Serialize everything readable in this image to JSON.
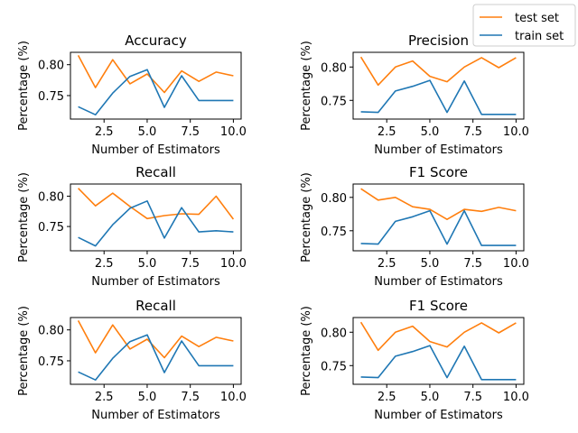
{
  "colors": {
    "test": "#ff7f0e",
    "train": "#1f77b4"
  },
  "legend": {
    "placement": "upper right",
    "entries": [
      {
        "key": "test",
        "label": "test set"
      },
      {
        "key": "train",
        "label": "train set"
      }
    ]
  },
  "chart_data": [
    {
      "type": "line",
      "title": "Accuracy",
      "xlabel": "Number of Estimators",
      "ylabel": "Percentage (%)",
      "xlim": [
        0.55,
        10.45
      ],
      "ylim": [
        0.712,
        0.82
      ],
      "xticks": [
        2.5,
        5.0,
        7.5,
        10.0
      ],
      "xtick_labels": [
        "2.5",
        "5.0",
        "7.5",
        "10.0"
      ],
      "yticks": [
        0.75,
        0.8
      ],
      "ytick_labels": [
        "0.75",
        "0.80"
      ],
      "x": [
        1,
        2,
        3,
        4,
        5,
        6,
        7,
        8,
        9,
        10
      ],
      "series": [
        {
          "key": "test",
          "name": "test set",
          "values": [
            0.815,
            0.763,
            0.808,
            0.769,
            0.785,
            0.755,
            0.79,
            0.773,
            0.788,
            0.782
          ]
        },
        {
          "key": "train",
          "name": "train set",
          "values": [
            0.732,
            0.719,
            0.754,
            0.781,
            0.792,
            0.731,
            0.782,
            0.742,
            0.742,
            0.742
          ]
        }
      ]
    },
    {
      "type": "line",
      "title": "Precision",
      "xlabel": "Number of Estimators",
      "ylabel": "Percentage (%)",
      "xlim": [
        0.55,
        10.45
      ],
      "ylim": [
        0.722,
        0.822
      ],
      "xticks": [
        2.5,
        5.0,
        7.5,
        10.0
      ],
      "xtick_labels": [
        "2.5",
        "5.0",
        "7.5",
        "10.0"
      ],
      "yticks": [
        0.75,
        0.8
      ],
      "ytick_labels": [
        "0.75",
        "0.80"
      ],
      "x": [
        1,
        2,
        3,
        4,
        5,
        6,
        7,
        8,
        9,
        10
      ],
      "series": [
        {
          "key": "test",
          "name": "test set",
          "values": [
            0.815,
            0.773,
            0.8,
            0.809,
            0.786,
            0.778,
            0.8,
            0.814,
            0.799,
            0.814
          ]
        },
        {
          "key": "train",
          "name": "train set",
          "values": [
            0.733,
            0.732,
            0.764,
            0.771,
            0.78,
            0.732,
            0.779,
            0.729,
            0.729,
            0.729
          ]
        }
      ]
    },
    {
      "type": "line",
      "title": "Recall",
      "xlabel": "Number of Estimators",
      "ylabel": "Percentage (%)",
      "xlim": [
        0.55,
        10.45
      ],
      "ylim": [
        0.71,
        0.82
      ],
      "xticks": [
        2.5,
        5.0,
        7.5,
        10.0
      ],
      "xtick_labels": [
        "2.5",
        "5.0",
        "7.5",
        "10.0"
      ],
      "yticks": [
        0.75,
        0.8
      ],
      "ytick_labels": [
        "0.75",
        "0.80"
      ],
      "x": [
        1,
        2,
        3,
        4,
        5,
        6,
        7,
        8,
        9,
        10
      ],
      "series": [
        {
          "key": "test",
          "name": "test set",
          "values": [
            0.813,
            0.784,
            0.805,
            0.783,
            0.763,
            0.768,
            0.771,
            0.77,
            0.8,
            0.762
          ]
        },
        {
          "key": "train",
          "name": "train set",
          "values": [
            0.732,
            0.718,
            0.753,
            0.78,
            0.792,
            0.731,
            0.781,
            0.741,
            0.743,
            0.741
          ]
        }
      ]
    },
    {
      "type": "line",
      "title": "F1 Score",
      "xlabel": "Number of Estimators",
      "ylabel": "Percentage (%)",
      "xlim": [
        0.55,
        10.45
      ],
      "ylim": [
        0.72,
        0.82
      ],
      "xticks": [
        2.5,
        5.0,
        7.5,
        10.0
      ],
      "xtick_labels": [
        "2.5",
        "5.0",
        "7.5",
        "10.0"
      ],
      "yticks": [
        0.75,
        0.8
      ],
      "ytick_labels": [
        "0.75",
        "0.80"
      ],
      "x": [
        1,
        2,
        3,
        4,
        5,
        6,
        7,
        8,
        9,
        10
      ],
      "series": [
        {
          "key": "test",
          "name": "test set",
          "values": [
            0.813,
            0.796,
            0.8,
            0.786,
            0.782,
            0.767,
            0.782,
            0.779,
            0.785,
            0.78
          ]
        },
        {
          "key": "train",
          "name": "train set",
          "values": [
            0.731,
            0.73,
            0.764,
            0.771,
            0.78,
            0.73,
            0.78,
            0.728,
            0.728,
            0.728
          ]
        }
      ]
    },
    {
      "type": "line",
      "title": "Recall",
      "xlabel": "Number of Estimators",
      "ylabel": "Percentage (%)",
      "xlim": [
        0.55,
        10.45
      ],
      "ylim": [
        0.712,
        0.82
      ],
      "xticks": [
        2.5,
        5.0,
        7.5,
        10.0
      ],
      "xtick_labels": [
        "2.5",
        "5.0",
        "7.5",
        "10.0"
      ],
      "yticks": [
        0.75,
        0.8
      ],
      "ytick_labels": [
        "0.75",
        "0.80"
      ],
      "x": [
        1,
        2,
        3,
        4,
        5,
        6,
        7,
        8,
        9,
        10
      ],
      "series": [
        {
          "key": "test",
          "name": "test set",
          "values": [
            0.815,
            0.763,
            0.808,
            0.769,
            0.785,
            0.755,
            0.79,
            0.773,
            0.788,
            0.782
          ]
        },
        {
          "key": "train",
          "name": "train set",
          "values": [
            0.732,
            0.719,
            0.754,
            0.781,
            0.792,
            0.731,
            0.782,
            0.742,
            0.742,
            0.742
          ]
        }
      ]
    },
    {
      "type": "line",
      "title": "F1 Score",
      "xlabel": "Number of Estimators",
      "ylabel": "Percentage (%)",
      "xlim": [
        0.55,
        10.45
      ],
      "ylim": [
        0.722,
        0.822
      ],
      "xticks": [
        2.5,
        5.0,
        7.5,
        10.0
      ],
      "xtick_labels": [
        "2.5",
        "5.0",
        "7.5",
        "10.0"
      ],
      "yticks": [
        0.75,
        0.8
      ],
      "ytick_labels": [
        "0.75",
        "0.80"
      ],
      "x": [
        1,
        2,
        3,
        4,
        5,
        6,
        7,
        8,
        9,
        10
      ],
      "series": [
        {
          "key": "test",
          "name": "test set",
          "values": [
            0.815,
            0.773,
            0.8,
            0.809,
            0.786,
            0.778,
            0.8,
            0.814,
            0.799,
            0.814
          ]
        },
        {
          "key": "train",
          "name": "train set",
          "values": [
            0.733,
            0.732,
            0.764,
            0.771,
            0.78,
            0.732,
            0.779,
            0.729,
            0.729,
            0.729
          ]
        }
      ]
    }
  ]
}
